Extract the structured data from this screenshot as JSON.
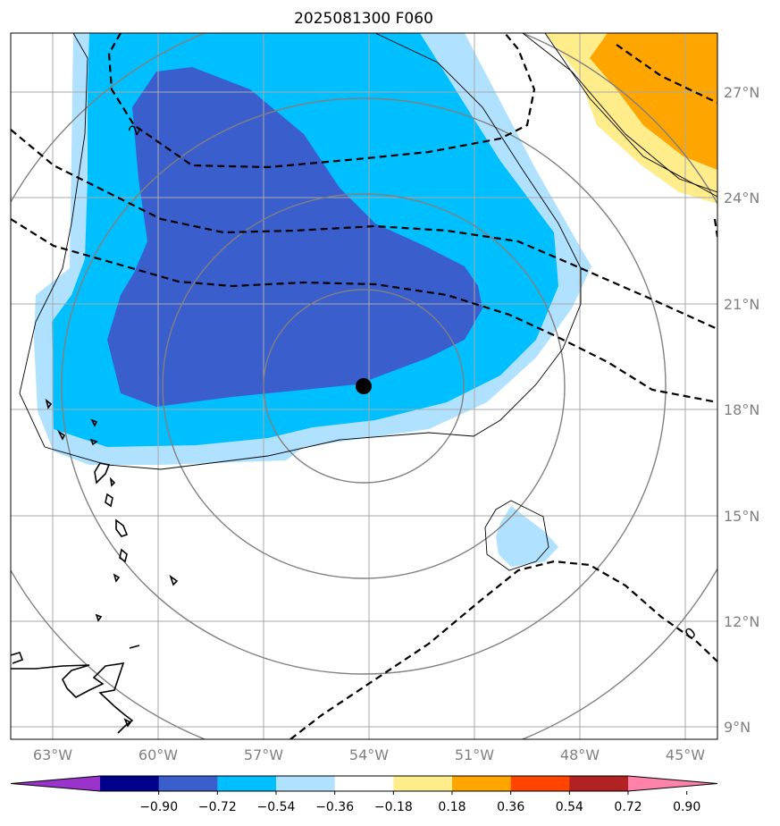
{
  "title": "2025081300 F060",
  "longitude_labels": [
    "63°W",
    "60°W",
    "57°W",
    "54°W",
    "51°W",
    "48°W",
    "45°W"
  ],
  "latitude_labels": [
    "27°N",
    "24°N",
    "21°N",
    "18°N",
    "15°N",
    "12°N",
    "9°N"
  ],
  "contour_labels": [
    "2",
    "0"
  ],
  "colorbar": {
    "tick_labels": [
      "−0.90",
      "−0.72",
      "−0.54",
      "−0.36",
      "−0.18",
      "0.18",
      "0.36",
      "0.54",
      "0.72",
      "0.90"
    ],
    "colors": [
      "#9933cc",
      "#00008b",
      "#3a5fcd",
      "#00bfff",
      "#b0e2ff",
      "#ffffff",
      "#ffec8b",
      "#ffa500",
      "#ff4500",
      "#b22222",
      "#ff82ab"
    ]
  },
  "storm_center": {
    "lon": "54°W",
    "lat": "18.7°N",
    "color": "#000000"
  }
}
